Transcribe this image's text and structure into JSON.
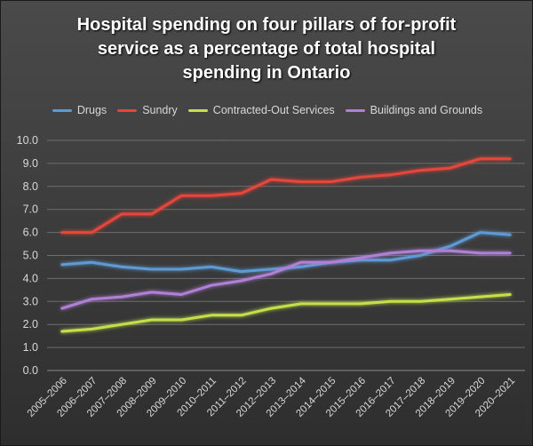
{
  "chart_data": {
    "type": "line",
    "title": "Hospital spending on four pillars of for-profit service as a percentage of total hospital spending in Ontario",
    "title_lines": [
      "Hospital spending on four pillars of for-profit",
      "service as a percentage of total hospital",
      "spending in Ontario"
    ],
    "xlabel": "",
    "ylabel": "",
    "ylim": [
      0,
      10
    ],
    "yticks": [
      "0.0",
      "1.0",
      "2.0",
      "3.0",
      "4.0",
      "5.0",
      "6.0",
      "7.0",
      "8.0",
      "9.0",
      "10.0"
    ],
    "grid": true,
    "legend_position": "top",
    "categories": [
      "2005–2006",
      "2006–2007",
      "2007–2008",
      "2008–2009",
      "2009–2010",
      "2010–2011",
      "2011–2012",
      "2012–2013",
      "2013–2014",
      "2014–2015",
      "2015–2016",
      "2016–2017",
      "2017–2018",
      "2018–2019",
      "2019–2020",
      "2020–2021"
    ],
    "series": [
      {
        "name": "Drugs",
        "color": "#5b9bd5",
        "values": [
          4.6,
          4.7,
          4.5,
          4.4,
          4.4,
          4.5,
          4.3,
          4.4,
          4.5,
          4.7,
          4.8,
          4.8,
          5.0,
          5.4,
          6.0,
          5.9
        ]
      },
      {
        "name": "Sundry",
        "color": "#e8443a",
        "values": [
          6.0,
          6.0,
          6.8,
          6.8,
          7.6,
          7.6,
          7.7,
          8.3,
          8.2,
          8.2,
          8.4,
          8.5,
          8.7,
          8.8,
          9.2,
          9.2
        ]
      },
      {
        "name": "Contracted-Out Services",
        "color": "#c4e04a",
        "values": [
          1.7,
          1.8,
          2.0,
          2.2,
          2.2,
          2.4,
          2.4,
          2.7,
          2.9,
          2.9,
          2.9,
          3.0,
          3.0,
          3.1,
          3.2,
          3.3
        ]
      },
      {
        "name": "Buildings and Grounds",
        "color": "#b07fd6",
        "values": [
          2.7,
          3.1,
          3.2,
          3.4,
          3.3,
          3.7,
          3.9,
          4.2,
          4.7,
          4.7,
          4.9,
          5.1,
          5.2,
          5.2,
          5.1,
          5.1
        ]
      }
    ]
  }
}
